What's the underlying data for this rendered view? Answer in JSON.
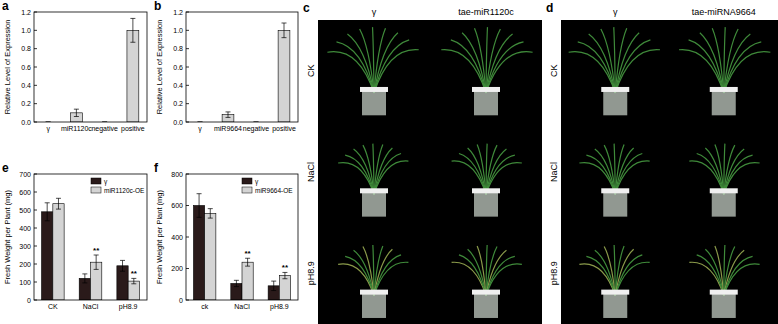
{
  "chart_data": [
    {
      "type": "bar",
      "title": "a",
      "y_label": "Relative Level of Expression",
      "categories": [
        "γ",
        "miR1120c",
        "negative",
        "positive"
      ],
      "values": [
        0,
        0.1,
        0,
        1.0
      ],
      "errors": [
        0,
        0.04,
        0,
        0.13
      ],
      "color": "#d4d4d4",
      "ylim": [
        0,
        1.2
      ],
      "yticks": [
        {
          "value": 0,
          "label": "0.0"
        },
        {
          "value": 0.2,
          "label": "0.2"
        },
        {
          "value": 0.4,
          "label": "0.4"
        },
        {
          "value": 0.6,
          "label": "0.6"
        },
        {
          "value": 0.8,
          "label": "0.8"
        },
        {
          "value": 1.0,
          "label": "1.0"
        },
        {
          "value": 1.2,
          "label": "1.2"
        }
      ],
      "grid": false
    },
    {
      "type": "bar",
      "title": "b",
      "y_label": "Relative Level of Expression",
      "categories": [
        "γ",
        "miR9664",
        "negative",
        "positive"
      ],
      "values": [
        0,
        0.08,
        0,
        1.0
      ],
      "errors": [
        0,
        0.03,
        0,
        0.08
      ],
      "color": "#d4d4d4",
      "ylim": [
        0,
        1.2
      ],
      "yticks": [
        {
          "value": 0,
          "label": "0.0"
        },
        {
          "value": 0.2,
          "label": "0.2"
        },
        {
          "value": 0.4,
          "label": "0.4"
        },
        {
          "value": 0.6,
          "label": "0.6"
        },
        {
          "value": 0.8,
          "label": "0.8"
        },
        {
          "value": 1.0,
          "label": "1.0"
        },
        {
          "value": 1.2,
          "label": "1.2"
        }
      ],
      "grid": false
    },
    {
      "type": "bar",
      "title": "e",
      "y_label": "Fresh Weight per Plant (mg)",
      "categories": [
        "CK",
        "NaCl",
        "pH8.9"
      ],
      "series": [
        {
          "name": "γ",
          "color": "#2a1a1a",
          "values": [
            490,
            120,
            190
          ],
          "errors": [
            50,
            25,
            30
          ]
        },
        {
          "name": "miR1120c-OE",
          "color": "#d4d4d4",
          "values": [
            535,
            210,
            105
          ],
          "errors": [
            30,
            40,
            15
          ],
          "annotations": [
            null,
            "**",
            "**"
          ]
        }
      ],
      "ylim": [
        0,
        700
      ],
      "yticks": [
        0,
        100,
        200,
        300,
        400,
        500,
        600,
        700
      ],
      "grid": false,
      "legend": "upper right"
    },
    {
      "type": "bar",
      "title": "f",
      "y_label": "Fresh Weight per Plant (mg)",
      "categories": [
        "ck",
        "NaCl",
        "pH8.9"
      ],
      "series": [
        {
          "name": "γ",
          "color": "#2a1a1a",
          "values": [
            600,
            105,
            90
          ],
          "errors": [
            75,
            20,
            30
          ]
        },
        {
          "name": "miR9664-OE",
          "color": "#d4d4d4",
          "values": [
            550,
            240,
            155
          ],
          "errors": [
            30,
            25,
            20
          ],
          "annotations": [
            null,
            "**",
            "**"
          ]
        }
      ],
      "ylim": [
        0,
        800
      ],
      "yticks": [
        0,
        200,
        400,
        600,
        800
      ],
      "grid": false,
      "legend": "upper right"
    }
  ],
  "photo_panels": [
    {
      "panel": "c",
      "columns": [
        "γ",
        "tae-miR1120c"
      ],
      "rows": [
        "CK",
        "NaCl",
        "pH8.9"
      ]
    },
    {
      "panel": "d",
      "columns": [
        "γ",
        "tae-miRNA9664"
      ],
      "rows": [
        "CK",
        "NaCl",
        "pH8.9"
      ]
    }
  ]
}
